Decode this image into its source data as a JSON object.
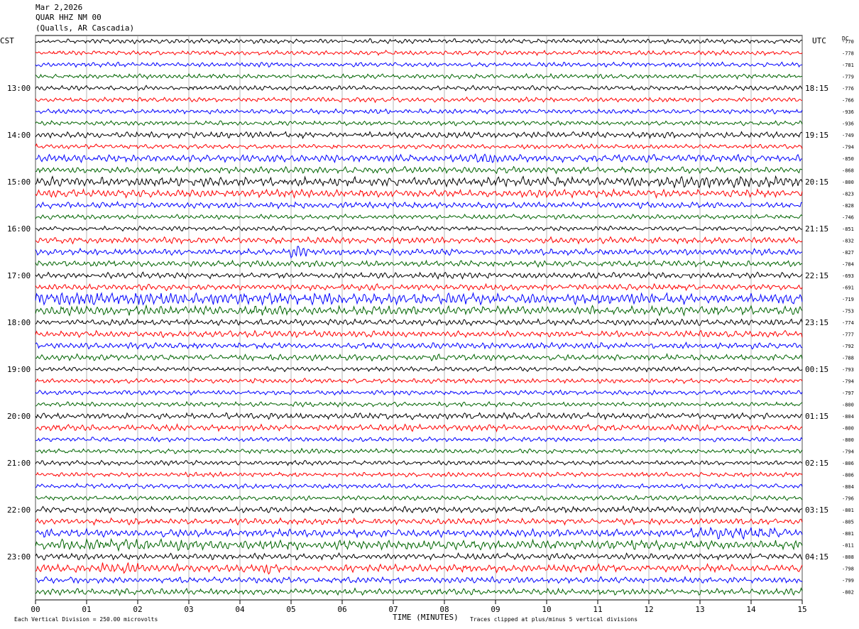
{
  "header": {
    "date": "Mar 2,2026",
    "station": "QUAR HHZ NM 00",
    "location": "(Qualls, AR Cascadia)"
  },
  "left_timezone": "CST",
  "right_timezone": "UTC",
  "dc_label": "DC",
  "footer": {
    "scale_note": "Each Vertical Division =  250.00 microvolts",
    "xlabel": "TIME (MINUTES)",
    "clip_note": "Traces clipped at plus/minus 5 vertical divisions"
  },
  "colors": {
    "trace_cycle": [
      "#000000",
      "#ff0000",
      "#0000ff",
      "#006400"
    ],
    "grid": "#888888"
  },
  "chart_data": {
    "type": "line",
    "title": "",
    "xlabel": "TIME (MINUTES)",
    "xlim": [
      0,
      15
    ],
    "x_ticks": [
      "00",
      "01",
      "02",
      "03",
      "04",
      "05",
      "06",
      "07",
      "08",
      "09",
      "10",
      "11",
      "12",
      "13",
      "14",
      "15"
    ],
    "trace_count": 48,
    "left_hour_labels": [
      "13:00",
      "14:00",
      "15:00",
      "16:00",
      "17:00",
      "18:00",
      "19:00",
      "20:00",
      "21:00",
      "22:00",
      "23:00"
    ],
    "right_hour_labels": [
      "18:15",
      "19:15",
      "20:15",
      "21:15",
      "22:15",
      "23:15",
      "00:15",
      "01:15",
      "02:15",
      "03:15",
      "04:15"
    ],
    "dc_offsets": [
      -770,
      -778,
      -781,
      -779,
      -776,
      -766,
      -936,
      -936,
      -749,
      -794,
      -850,
      -868,
      -800,
      -823,
      -828,
      -746,
      -851,
      -832,
      -827,
      -784,
      -693,
      -691,
      -719,
      -753,
      -774,
      -777,
      -792,
      -788,
      -793,
      -794,
      -797,
      -800,
      -804,
      -800,
      -800,
      -794,
      -806,
      -806,
      -804,
      -796,
      -801,
      -805,
      -801,
      -811,
      -808,
      -798,
      -799,
      -802
    ],
    "trace_amplitude": [
      3,
      3,
      3,
      3,
      3,
      3,
      3,
      3,
      4,
      3,
      5,
      4,
      6,
      5,
      4,
      3,
      3,
      4,
      4,
      4,
      4,
      4,
      7,
      6,
      4,
      4,
      4,
      4,
      3,
      3,
      3,
      3,
      4,
      4,
      3,
      3,
      3,
      3,
      3,
      3,
      4,
      4,
      5,
      6,
      4,
      5,
      4,
      4
    ],
    "events": [
      {
        "trace": 43,
        "start_min": 0.4,
        "end_min": 3.2,
        "amplitude": 8
      },
      {
        "trace": 45,
        "start_min": 1.3,
        "end_min": 2.0,
        "amplitude": 9
      },
      {
        "trace": 45,
        "start_min": 4.3,
        "end_min": 4.6,
        "amplitude": 8
      },
      {
        "trace": 42,
        "start_min": 12.8,
        "end_min": 14.8,
        "amplitude": 8
      },
      {
        "trace": 22,
        "start_min": 0.0,
        "end_min": 6.0,
        "amplitude": 9
      },
      {
        "trace": 18,
        "start_min": 5.0,
        "end_min": 5.3,
        "amplitude": 9
      },
      {
        "trace": 12,
        "start_min": 12.5,
        "end_min": 15.0,
        "amplitude": 8
      },
      {
        "trace": 10,
        "start_min": 8.6,
        "end_min": 9.1,
        "amplitude": 7
      }
    ]
  }
}
